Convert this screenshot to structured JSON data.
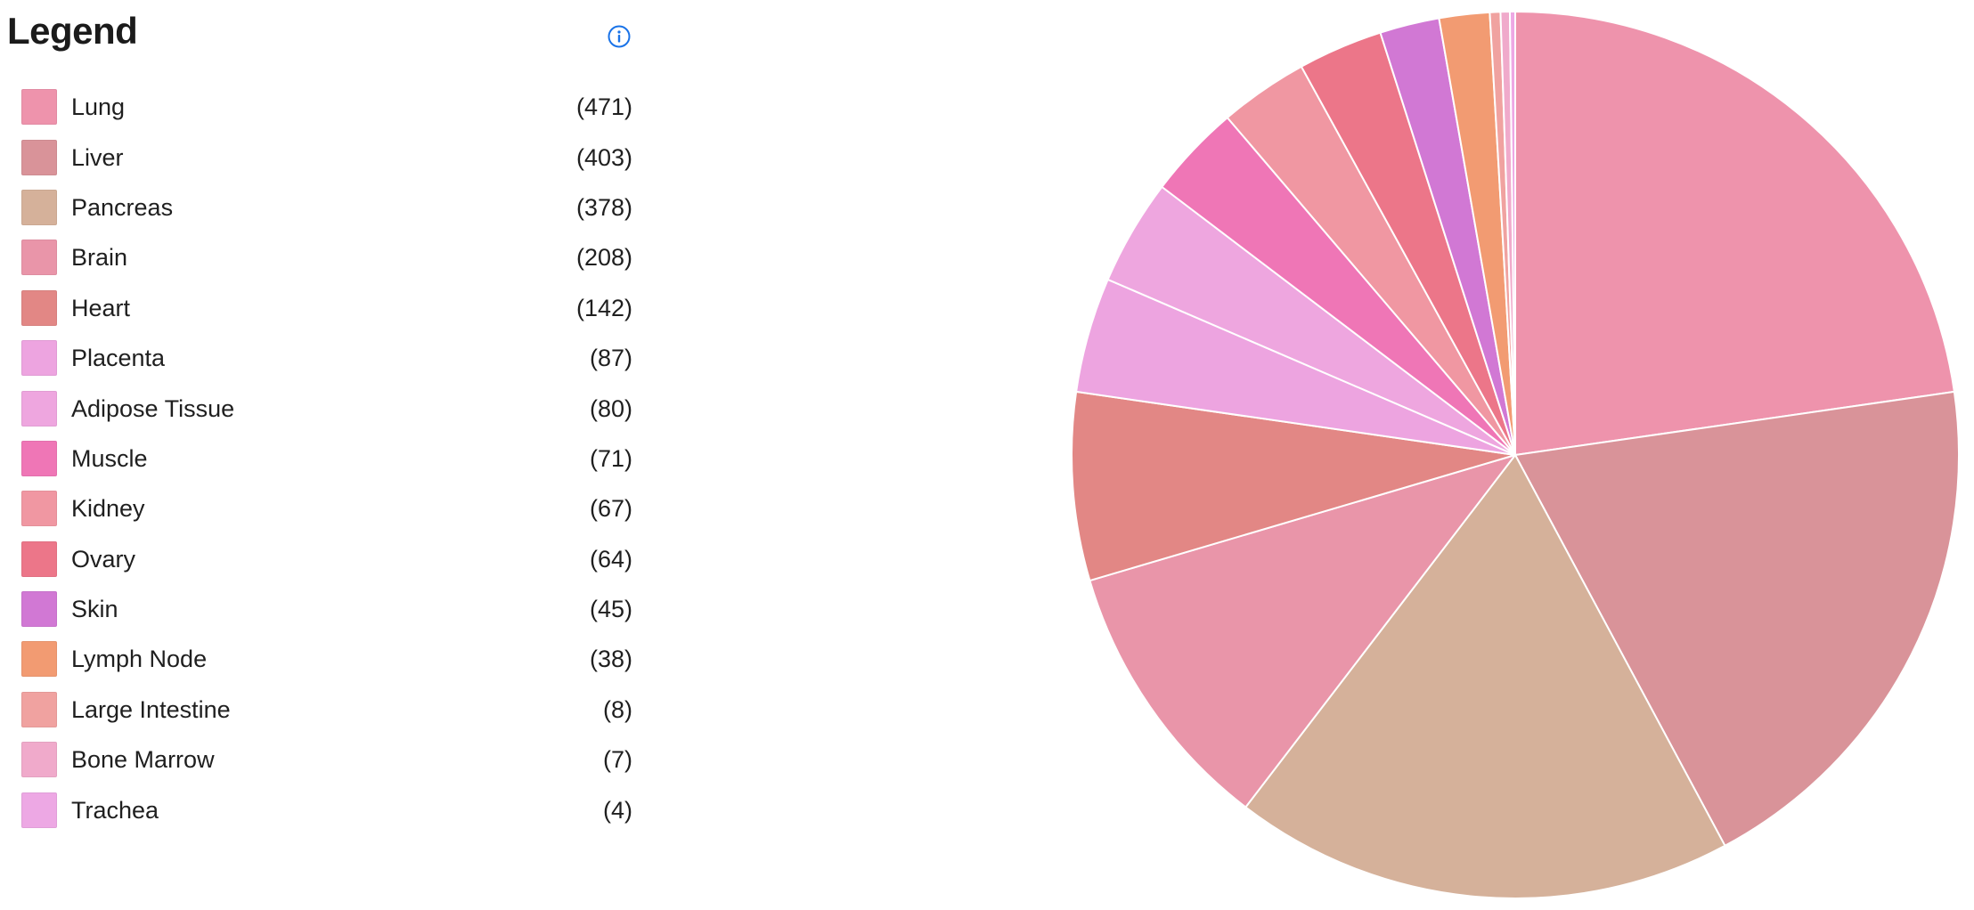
{
  "legend": {
    "title": "Legend",
    "info_icon": "info-circle-icon",
    "info_color": "#1a73e8"
  },
  "chart_data": {
    "type": "pie",
    "title": "",
    "legend_position": "left",
    "categories": [
      "Lung",
      "Liver",
      "Pancreas",
      "Brain",
      "Heart",
      "Placenta",
      "Adipose Tissue",
      "Muscle",
      "Kidney",
      "Ovary",
      "Skin",
      "Lymph Node",
      "Large Intestine",
      "Bone Marrow",
      "Trachea"
    ],
    "values": [
      471,
      403,
      378,
      208,
      142,
      87,
      80,
      71,
      67,
      64,
      45,
      38,
      8,
      7,
      4
    ],
    "count_labels": [
      "(471)",
      "(403)",
      "(378)",
      "(208)",
      "(142)",
      "(87)",
      "(80)",
      "(71)",
      "(67)",
      "(64)",
      "(45)",
      "(38)",
      "(8)",
      "(7)",
      "(4)"
    ],
    "colors": [
      "#ee93ac",
      "#d99399",
      "#d5b19a",
      "#e995a9",
      "#e28785",
      "#eda4e0",
      "#eea6df",
      "#ef76b6",
      "#f097a2",
      "#ec7689",
      "#d178d4",
      "#f29b72",
      "#f0a2a0",
      "#f0aacb",
      "#eda8e4"
    ],
    "slice_border_color": "#ffffff"
  }
}
